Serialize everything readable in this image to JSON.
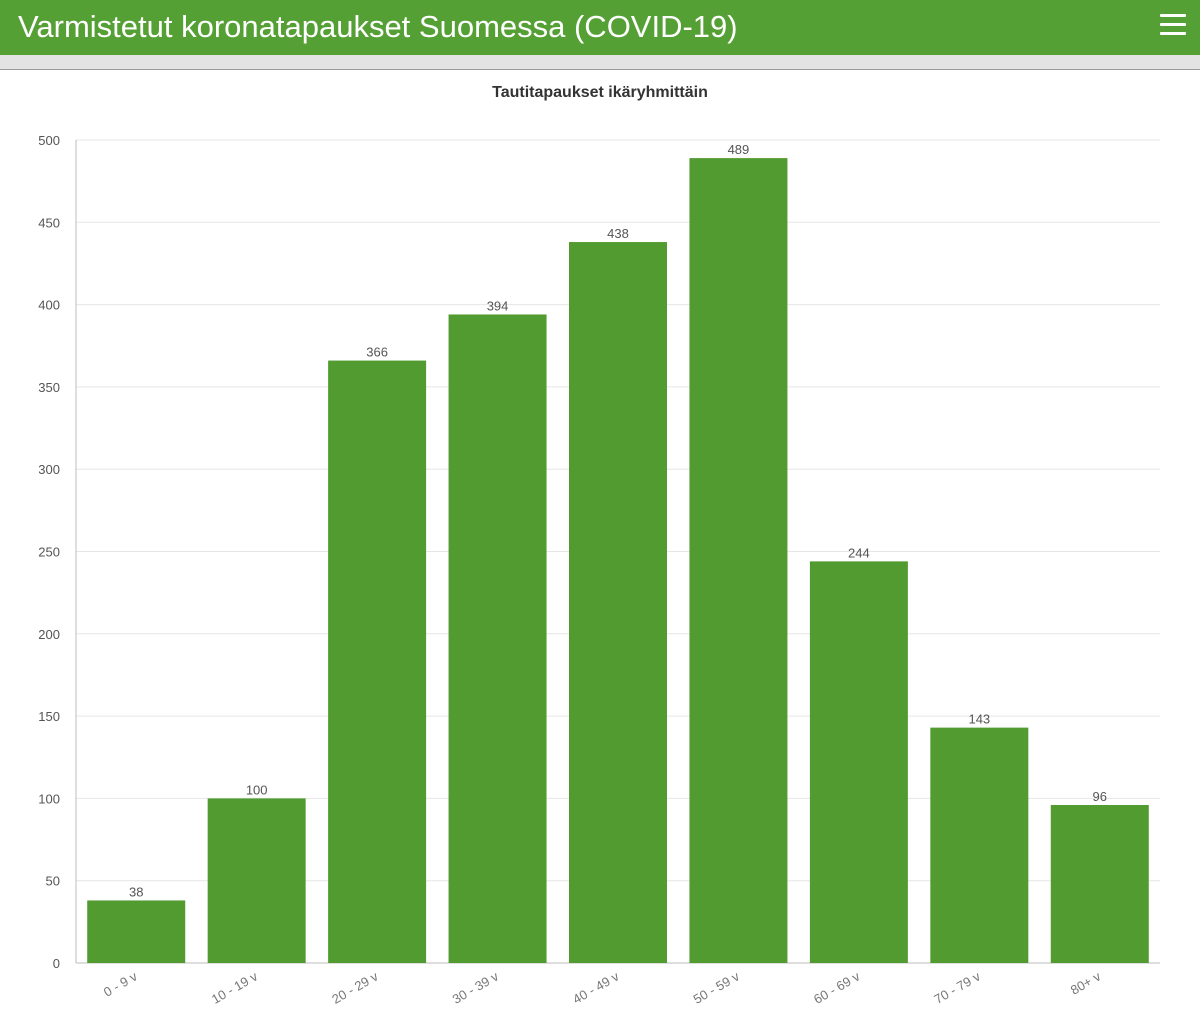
{
  "header": {
    "title": "Varmistetut koronatapaukset Suomessa (COVID-19)",
    "menu_icon": "hamburger-menu-icon"
  },
  "colors": {
    "header_bg": "#55a034",
    "bar": "#529b30",
    "grid": "#e6e6e6",
    "axis_text": "#555555",
    "title_text": "#333333"
  },
  "chart_data": {
    "type": "bar",
    "title": "Tautitapaukset ikäryhmittäin",
    "xlabel": "",
    "ylabel": "",
    "categories": [
      "0 - 9 v",
      "10 - 19 v",
      "20 - 29 v",
      "30 - 39 v",
      "40 - 49 v",
      "50 - 59 v",
      "60 - 69 v",
      "70 - 79 v",
      "80+ v"
    ],
    "values": [
      38,
      100,
      366,
      394,
      438,
      489,
      244,
      143,
      96
    ],
    "ylim": [
      0,
      500
    ],
    "yticks": [
      0,
      50,
      100,
      150,
      200,
      250,
      300,
      350,
      400,
      450,
      500
    ],
    "grid": true,
    "data_labels": true,
    "legend": "none"
  }
}
